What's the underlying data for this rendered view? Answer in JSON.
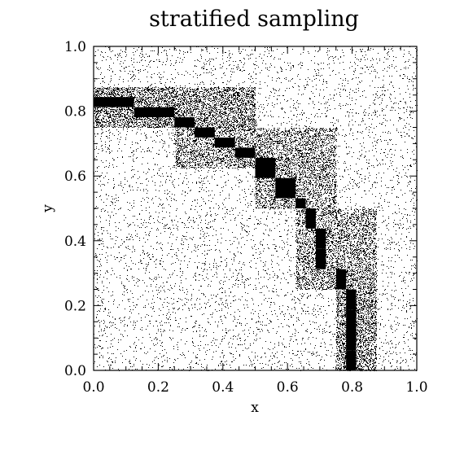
{
  "chart_data": {
    "type": "scatter",
    "title": "stratified sampling",
    "xlabel": "x",
    "ylabel": "y",
    "xlim": [
      0.0,
      1.0
    ],
    "ylim": [
      0.0,
      1.0
    ],
    "x_ticks": [
      "0.0",
      "0.2",
      "0.4",
      "0.6",
      "0.8",
      "1.0"
    ],
    "y_ticks": [
      "0.0",
      "0.2",
      "0.4",
      "0.6",
      "0.8",
      "1.0"
    ],
    "grid": false,
    "legend": "none",
    "marker_color": "#000000",
    "background_density": 0.06,
    "sampling_strata": [
      {
        "x0": 0.0,
        "x1": 0.5,
        "y0": 0.75,
        "y1": 0.875,
        "density": 0.45
      },
      {
        "x0": 0.25,
        "x1": 0.75,
        "y0": 0.625,
        "y1": 0.75,
        "density": 0.35
      },
      {
        "x0": 0.5,
        "x1": 0.75,
        "y0": 0.5,
        "y1": 0.625,
        "density": 0.35
      },
      {
        "x0": 0.625,
        "x1": 0.875,
        "y0": 0.25,
        "y1": 0.5,
        "density": 0.35
      },
      {
        "x0": 0.75,
        "x1": 0.875,
        "y0": 0.0,
        "y1": 0.25,
        "density": 0.45
      }
    ],
    "dense_cells": [
      {
        "x0": 0.0,
        "x1": 0.125,
        "y0": 0.8125,
        "y1": 0.84375
      },
      {
        "x0": 0.125,
        "x1": 0.25,
        "y0": 0.78125,
        "y1": 0.8125
      },
      {
        "x0": 0.25,
        "x1": 0.3125,
        "y0": 0.75,
        "y1": 0.78125
      },
      {
        "x0": 0.3125,
        "x1": 0.375,
        "y0": 0.71875,
        "y1": 0.75
      },
      {
        "x0": 0.375,
        "x1": 0.4375,
        "y0": 0.6875,
        "y1": 0.71875
      },
      {
        "x0": 0.4375,
        "x1": 0.5,
        "y0": 0.65625,
        "y1": 0.6875
      },
      {
        "x0": 0.5,
        "x1": 0.5625,
        "y0": 0.59375,
        "y1": 0.65625
      },
      {
        "x0": 0.5625,
        "x1": 0.625,
        "y0": 0.53125,
        "y1": 0.59375
      },
      {
        "x0": 0.625,
        "x1": 0.65625,
        "y0": 0.5,
        "y1": 0.53125
      },
      {
        "x0": 0.65625,
        "x1": 0.6875,
        "y0": 0.4375,
        "y1": 0.5
      },
      {
        "x0": 0.6875,
        "x1": 0.71875,
        "y0": 0.375,
        "y1": 0.4375
      },
      {
        "x0": 0.6875,
        "x1": 0.71875,
        "y0": 0.3125,
        "y1": 0.375
      },
      {
        "x0": 0.75,
        "x1": 0.78125,
        "y0": 0.25,
        "y1": 0.3125
      },
      {
        "x0": 0.78125,
        "x1": 0.8125,
        "y0": 0.1875,
        "y1": 0.25
      },
      {
        "x0": 0.78125,
        "x1": 0.8125,
        "y0": 0.0625,
        "y1": 0.1875
      },
      {
        "x0": 0.78125,
        "x1": 0.8125,
        "y0": 0.0,
        "y1": 0.0625
      }
    ]
  }
}
